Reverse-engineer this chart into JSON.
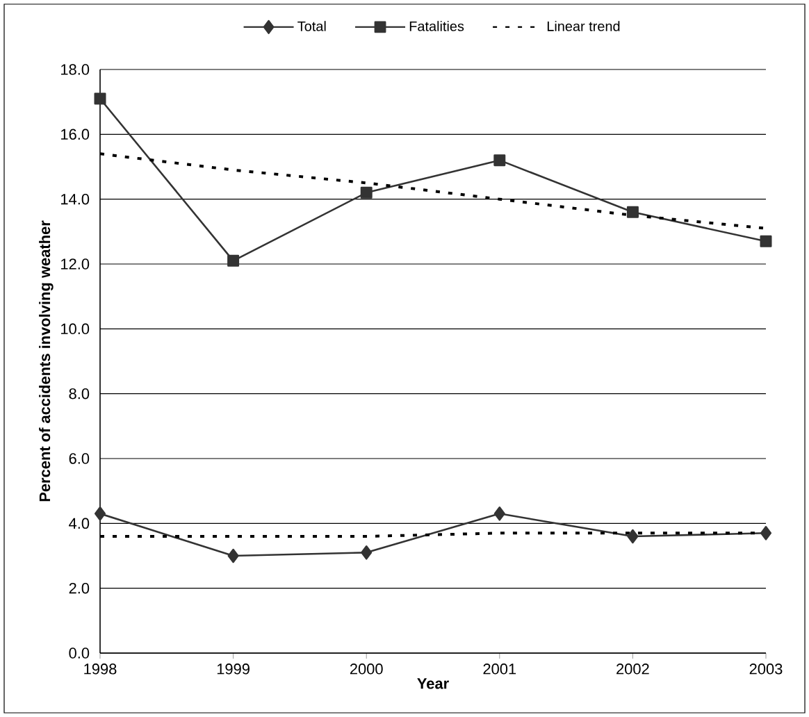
{
  "chart_data": {
    "type": "line",
    "xlabel": "Year",
    "ylabel": "Percent of accidents involving weather",
    "x": [
      1998,
      1999,
      2000,
      2001,
      2002,
      2003
    ],
    "xlim": [
      1998,
      2003
    ],
    "xticks": [
      1998,
      1999,
      2000,
      2001,
      2002,
      2003
    ],
    "ylim": [
      0,
      18
    ],
    "yticks": [
      {
        "value": 0,
        "label": "0.0"
      },
      {
        "value": 2,
        "label": "2.0"
      },
      {
        "value": 4,
        "label": "4.0"
      },
      {
        "value": 6,
        "label": "6.0"
      },
      {
        "value": 8,
        "label": "8.0"
      },
      {
        "value": 10,
        "label": "10.0"
      },
      {
        "value": 12,
        "label": "12.0"
      },
      {
        "value": 14,
        "label": "14.0"
      },
      {
        "value": 16,
        "label": "16.0"
      },
      {
        "value": 18,
        "label": "18.0"
      }
    ],
    "grid": "y",
    "legend": "top",
    "series": [
      {
        "name": "Total",
        "color": "#333333",
        "marker": "diamond",
        "line_style": "solid",
        "values": [
          4.3,
          3.0,
          3.1,
          4.3,
          3.6,
          3.7
        ]
      },
      {
        "name": "Fatalities",
        "color": "#333333",
        "marker": "square",
        "line_style": "solid",
        "values": [
          17.1,
          12.1,
          14.2,
          15.2,
          13.6,
          12.7
        ]
      },
      {
        "name": "Linear trend",
        "color": "#000000",
        "marker": "none",
        "line_style": "dashed",
        "values": [
          15.4,
          14.9,
          14.5,
          14.0,
          13.5,
          13.1
        ]
      },
      {
        "color": "#000000",
        "marker": "none",
        "line_style": "dashed",
        "values": [
          3.6,
          3.6,
          3.6,
          3.7,
          3.7,
          3.7
        ]
      }
    ]
  }
}
